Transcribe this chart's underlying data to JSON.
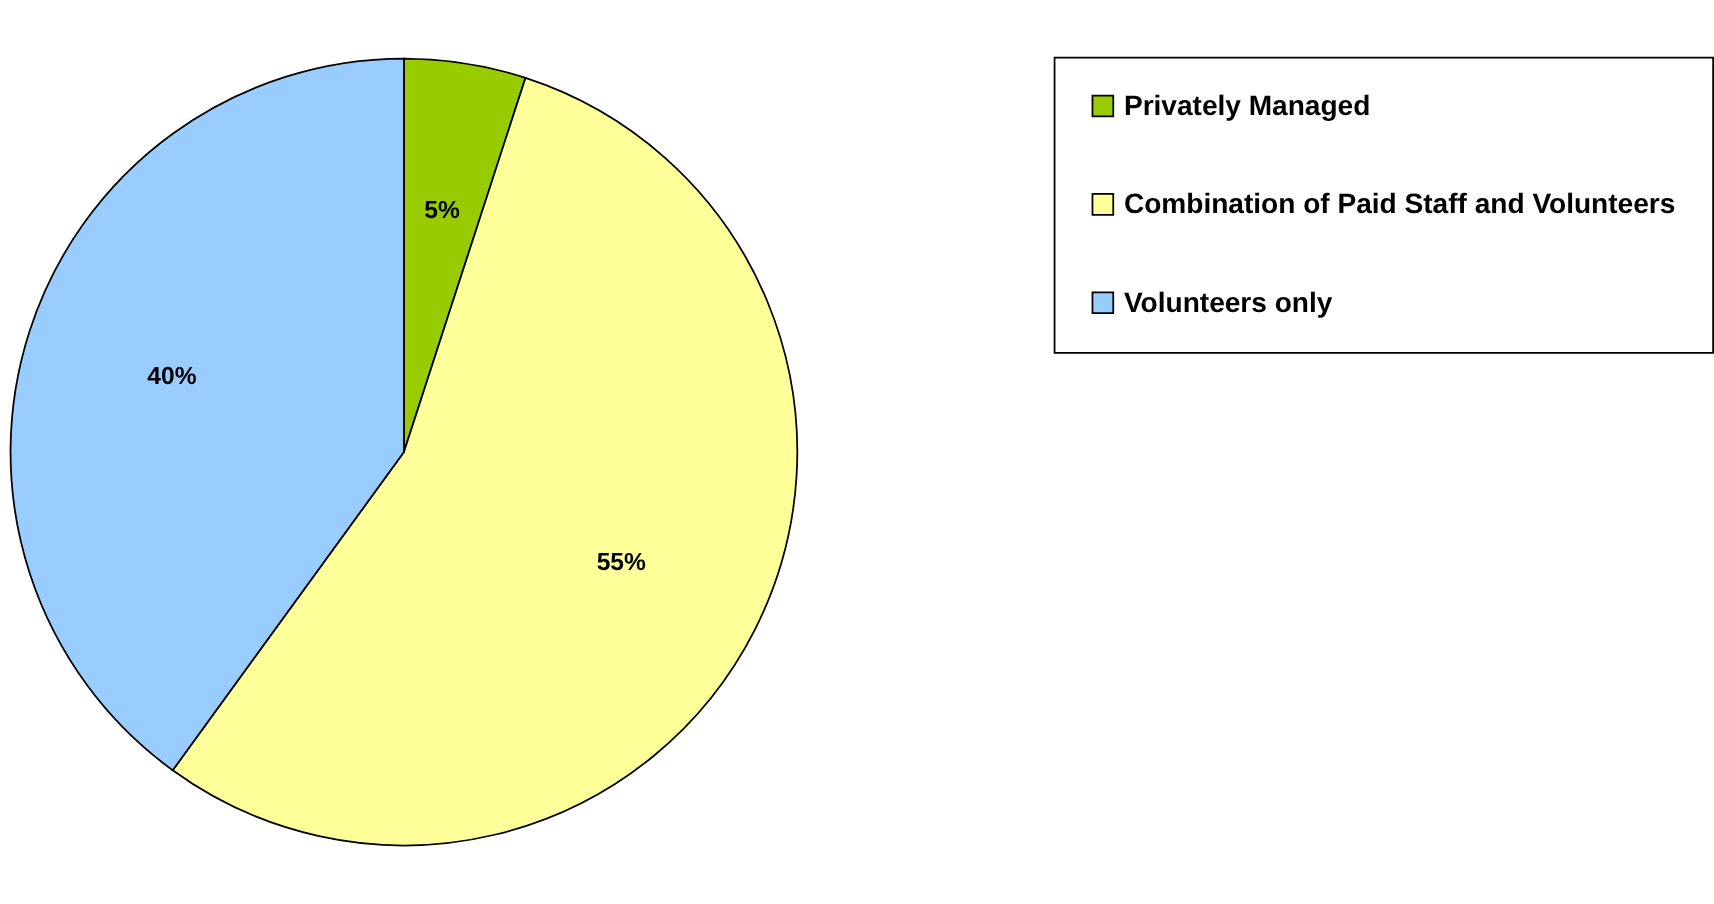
{
  "chart_data": {
    "type": "pie",
    "categories": [
      "Privately Managed",
      "Combination of Paid Staff and Volunteers",
      "Volunteers only"
    ],
    "values": [
      5,
      55,
      40
    ],
    "colors": [
      "#99cc00",
      "#ffff99",
      "#99ccff"
    ],
    "value_labels": [
      "5%",
      "55%",
      "40%"
    ],
    "legend": "right"
  }
}
